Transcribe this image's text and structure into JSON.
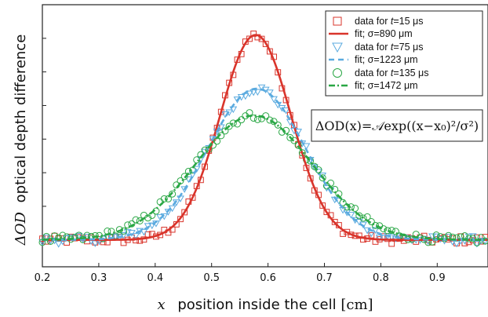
{
  "chart_data": {
    "type": "scatter",
    "title": "",
    "xlabel": {
      "var": "x",
      "text": "position inside the cell",
      "unit": "[cm]"
    },
    "ylabel": {
      "var": "ΔOD",
      "text": "optical depth difference"
    },
    "xlim": [
      0.2,
      0.99
    ],
    "ylim": [
      -0.04,
      0.35
    ],
    "x_ticks": [
      "0.2",
      "0.3",
      "0.4",
      "0.5",
      "0.6",
      "0.7",
      "0.8",
      "0.9"
    ],
    "y_ticks_labeled": false,
    "grid": false,
    "legend_position": "top-right",
    "annotation": "ΔOD(x)=𝒜exp((x−x₀)²/σ²)",
    "series": [
      {
        "name_prefix": "data for ",
        "name_var": "t",
        "name_suffix": "=15 μs",
        "marker": "square",
        "color": "#d9342b",
        "fit_label": "fit; σ=890 μm",
        "fit_style": "solid",
        "amplitude": 0.305,
        "center": 0.578,
        "sigma_cm": 0.089,
        "baseline": 0.0
      },
      {
        "name_prefix": "data for ",
        "name_var": "t",
        "name_suffix": "=75 μs",
        "marker": "triangle-down",
        "color": "#5aaadf",
        "fit_label": "fit; σ=1223 μm",
        "fit_style": "dashed",
        "amplitude": 0.225,
        "center": 0.58,
        "sigma_cm": 0.1223,
        "baseline": 0.0
      },
      {
        "name_prefix": "data for ",
        "name_var": "t",
        "name_suffix": "=135 μs",
        "marker": "circle",
        "color": "#2aa745",
        "fit_label": "fit; σ=1472 μm",
        "fit_style": "dashdot",
        "amplitude": 0.185,
        "center": 0.575,
        "sigma_cm": 0.1472,
        "baseline": 0.0
      }
    ]
  }
}
